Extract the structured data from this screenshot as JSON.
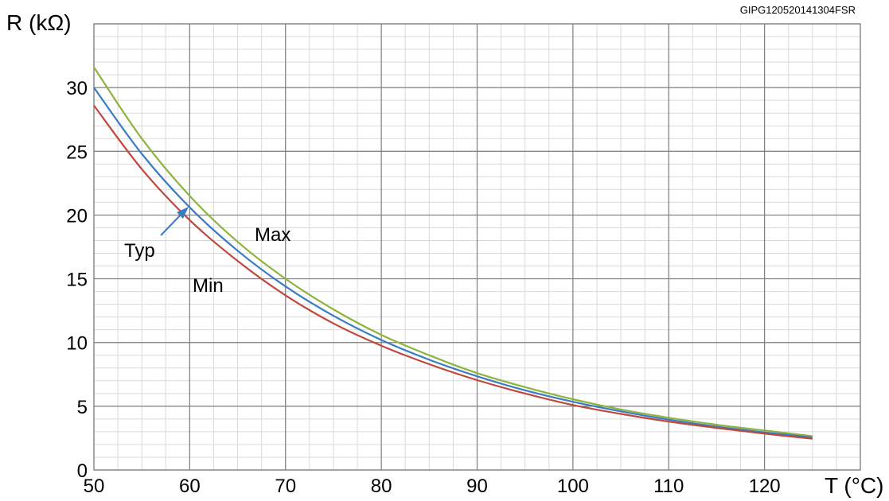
{
  "chart_data": {
    "type": "line",
    "code": "GIPG120520141304FSR",
    "xlabel": "T (°C)",
    "ylabel": "R (kΩ)",
    "xlim": [
      50,
      130
    ],
    "ylim": [
      0,
      35
    ],
    "xticks": [
      50,
      60,
      70,
      80,
      90,
      100,
      110,
      120
    ],
    "yticks": [
      0,
      5,
      10,
      15,
      20,
      25,
      30
    ],
    "grid": true,
    "minor_grid": true,
    "colors": {
      "Max": "#8db43c",
      "Typ": "#3a7cc3",
      "Min": "#c0473e",
      "grid_major": "#7f7f7f",
      "grid_minor": "#d9d9d9"
    },
    "x": [
      50,
      55,
      60,
      65,
      70,
      75,
      80,
      85,
      90,
      95,
      100,
      105,
      110,
      115,
      120,
      125
    ],
    "series": [
      {
        "name": "Max",
        "values": [
          31.6,
          26.0,
          21.5,
          17.9,
          15.0,
          12.6,
          10.6,
          9.0,
          7.6,
          6.5,
          5.55,
          4.75,
          4.1,
          3.55,
          3.1,
          2.65
        ]
      },
      {
        "name": "Typ",
        "values": [
          30.0,
          24.8,
          20.6,
          17.2,
          14.4,
          12.1,
          10.2,
          8.65,
          7.35,
          6.25,
          5.35,
          4.6,
          3.95,
          3.4,
          2.95,
          2.55
        ]
      },
      {
        "name": "Min",
        "values": [
          28.6,
          23.6,
          19.6,
          16.4,
          13.7,
          11.5,
          9.75,
          8.3,
          7.05,
          6.0,
          5.1,
          4.4,
          3.8,
          3.3,
          2.85,
          2.45
        ]
      }
    ]
  }
}
